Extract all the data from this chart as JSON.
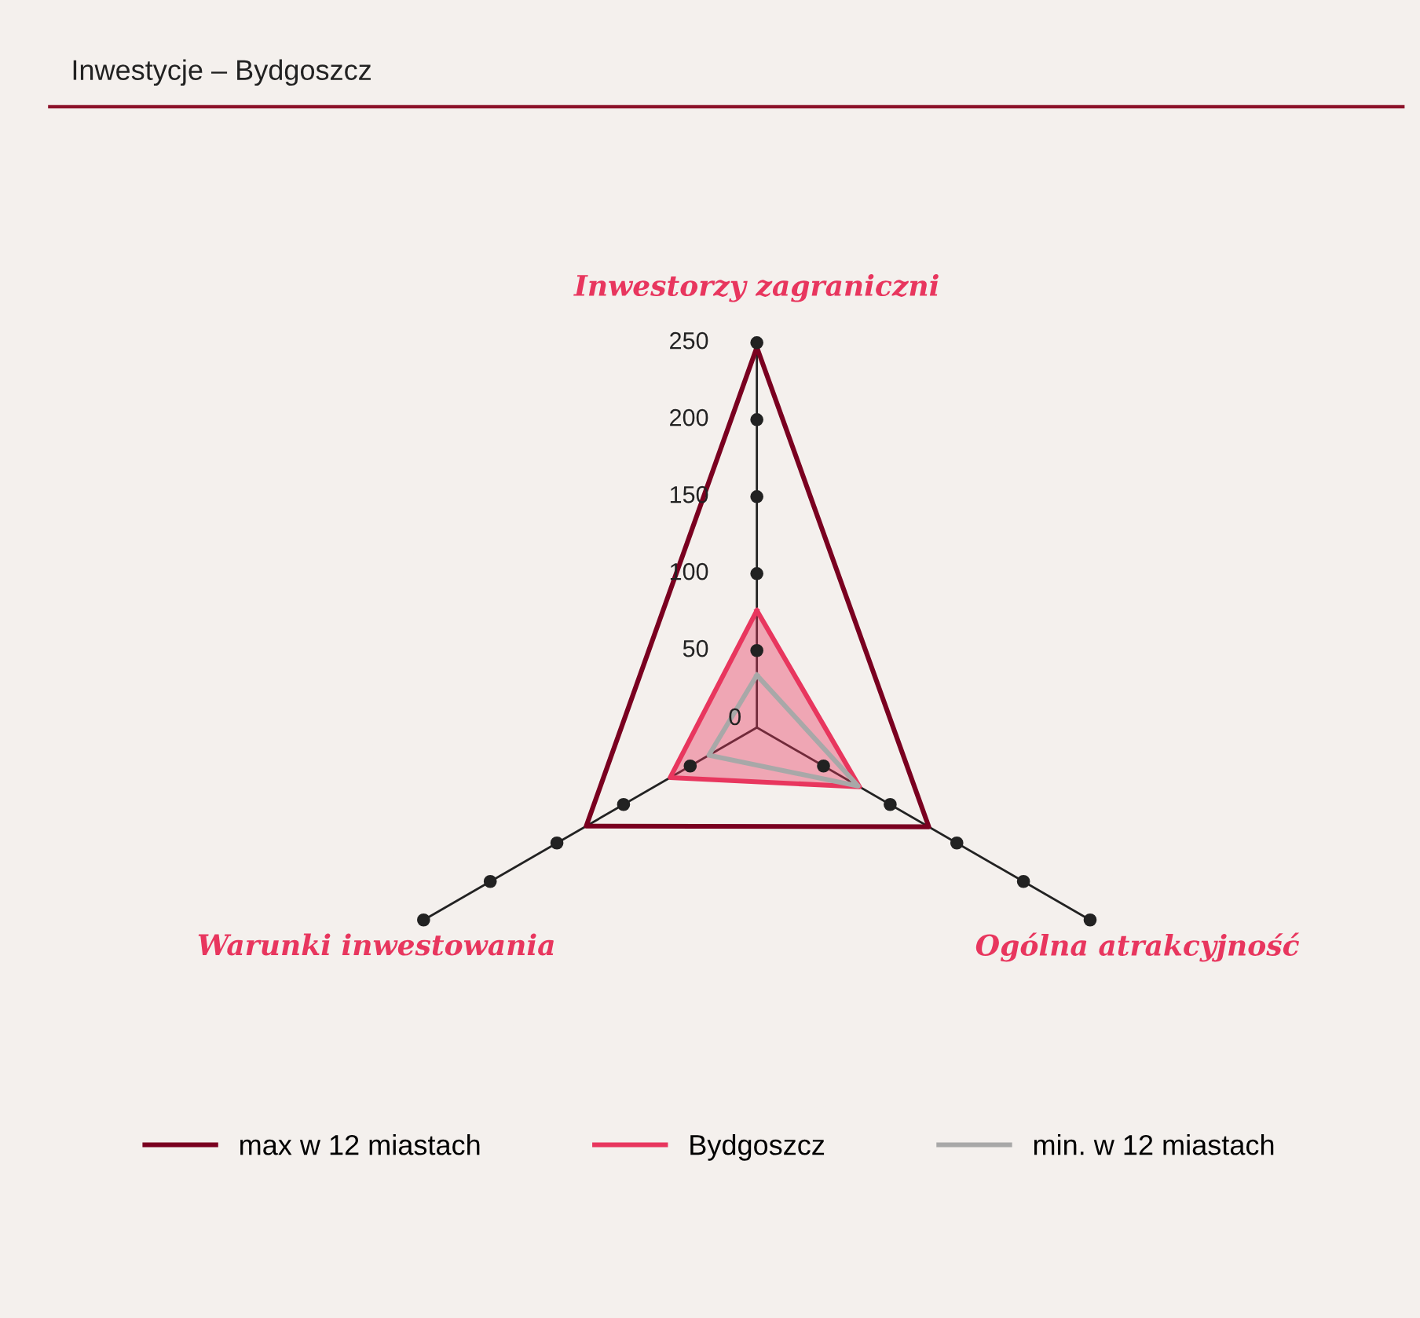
{
  "chart_data": {
    "type": "radar",
    "title": "Inwestycje – Bydgoszcz",
    "categories": [
      "Inwestorzy zagraniczni",
      "Ogólna atrakcyjność",
      "Warunki inwestowania"
    ],
    "series": [
      {
        "name": "max w 12 miastach",
        "color": "#7a0020",
        "values": [
          247,
          129,
          128
        ]
      },
      {
        "name": "Bydgoszcz",
        "color": "#e8365e",
        "values": [
          76,
          77,
          65
        ]
      },
      {
        "name": "min. w 12 miastach",
        "color": "#a8a8a8",
        "values": [
          34,
          76,
          36
        ]
      }
    ],
    "ylim": [
      0,
      250
    ],
    "yticks": [
      0,
      50,
      100,
      150,
      200,
      250
    ],
    "legend": "bottom",
    "marker": "none"
  }
}
